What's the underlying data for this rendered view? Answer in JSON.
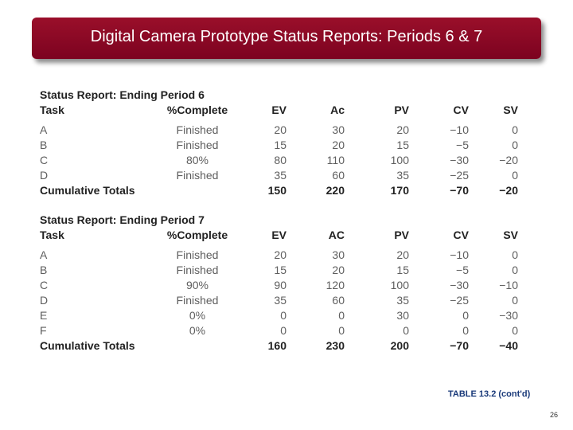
{
  "title": "Digital Camera Prototype Status Reports: Periods 6 & 7",
  "tables": [
    {
      "heading": "Status Report: Ending Period 6",
      "headers": [
        "Task",
        "%Complete",
        "EV",
        "Ac",
        "PV",
        "CV",
        "SV"
      ],
      "rows": [
        [
          "A",
          "Finished",
          "20",
          "30",
          "20",
          "−10",
          "0"
        ],
        [
          "B",
          "Finished",
          "15",
          "20",
          "15",
          "−5",
          "0"
        ],
        [
          "C",
          "80%",
          "80",
          "110",
          "100",
          "−30",
          "−20"
        ],
        [
          "D",
          "Finished",
          "35",
          "60",
          "35",
          "−25",
          "0"
        ]
      ],
      "totals": [
        "Cumulative Totals",
        "",
        "150",
        "220",
        "170",
        "−70",
        "−20"
      ]
    },
    {
      "heading": "Status Report: Ending Period 7",
      "headers": [
        "Task",
        "%Complete",
        "EV",
        "AC",
        "PV",
        "CV",
        "SV"
      ],
      "rows": [
        [
          "A",
          "Finished",
          "20",
          "30",
          "20",
          "−10",
          "0"
        ],
        [
          "B",
          "Finished",
          "15",
          "20",
          "15",
          "−5",
          "0"
        ],
        [
          "C",
          "90%",
          "90",
          "120",
          "100",
          "−30",
          "−10"
        ],
        [
          "D",
          "Finished",
          "35",
          "60",
          "35",
          "−25",
          "0"
        ],
        [
          "E",
          "0%",
          "0",
          "0",
          "30",
          "0",
          "−30"
        ],
        [
          "F",
          "0%",
          "0",
          "0",
          "0",
          "0",
          "0"
        ]
      ],
      "totals": [
        "Cumulative Totals",
        "",
        "160",
        "230",
        "200",
        "−70",
        "−40"
      ]
    }
  ],
  "caption": "TABLE 13.2 (cont'd)",
  "page_number": "26",
  "colors": {
    "banner": "#8b0a25",
    "banner_text": "#ffffff",
    "caption": "#1a3a7a"
  }
}
